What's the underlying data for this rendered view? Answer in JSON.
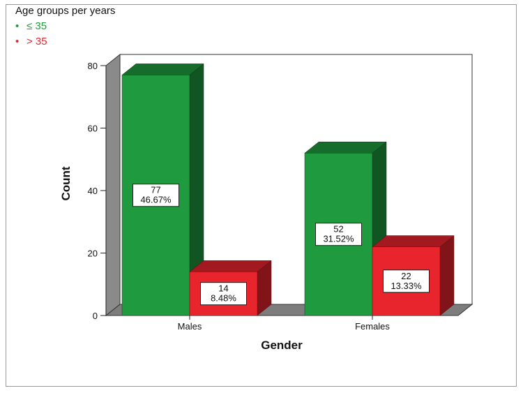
{
  "legend": {
    "title": "Age groups per years",
    "items": [
      {
        "marker": "•",
        "label": "≤ 35",
        "color": "#1f9a3e"
      },
      {
        "marker": "•",
        "label": "> 35",
        "color": "#e8242c"
      }
    ]
  },
  "chart_data": {
    "type": "bar",
    "style": "3d-clustered",
    "xlabel": "Gender",
    "ylabel": "Count",
    "categories": [
      "Males",
      "Females"
    ],
    "ylim": [
      0,
      80
    ],
    "yticks": [
      0,
      20,
      40,
      60,
      80
    ],
    "grid": false,
    "legend_position": "top-left",
    "series": [
      {
        "name": "≤ 35",
        "color": "#1f9a3e",
        "values": [
          77,
          52
        ],
        "labels": [
          [
            "77",
            "46.67%"
          ],
          [
            "52",
            "31.52%"
          ]
        ]
      },
      {
        "name": "> 35",
        "color": "#e8242c",
        "values": [
          14,
          22
        ],
        "labels": [
          [
            "14",
            "8.48%"
          ],
          [
            "22",
            "13.33%"
          ]
        ]
      }
    ]
  }
}
